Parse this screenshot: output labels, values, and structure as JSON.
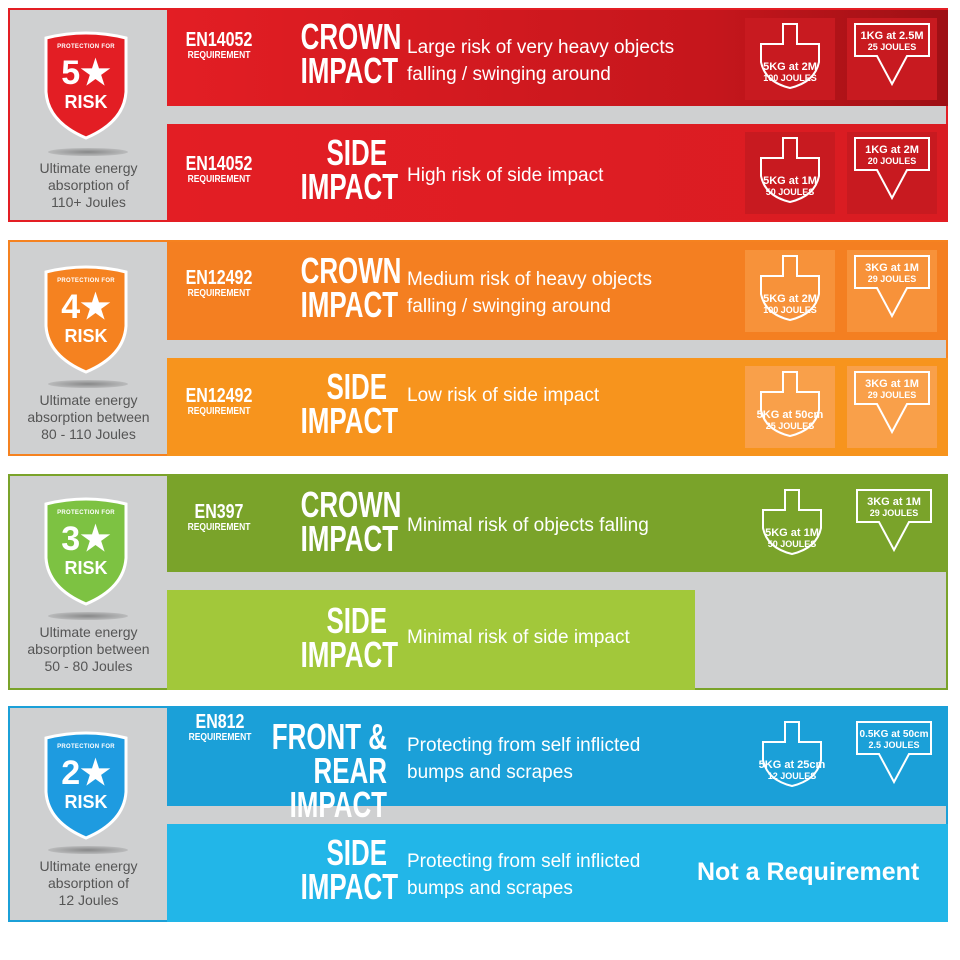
{
  "groups": [
    {
      "color": "#e31e24",
      "shield": {
        "protection_for": "PROTECTION FOR",
        "stars": "5★",
        "risk": "RISK"
      },
      "absorption": [
        "Ultimate energy",
        "absorption of",
        "110+ Joules"
      ],
      "rows": [
        {
          "std_code": "EN14052",
          "std_req": "REQUIREMENT",
          "impact_1": "CROWN",
          "impact_2": "IMPACT",
          "desc_1": "Large risk of very heavy objects",
          "desc_2": "falling / swinging around",
          "icon_a": [
            "5KG at 2M",
            "100 JOULES"
          ],
          "icon_b": [
            "1KG at 2.5M",
            "25 JOULES"
          ]
        },
        {
          "std_code": "EN14052",
          "std_req": "REQUIREMENT",
          "impact_1": "SIDE",
          "impact_2": "IMPACT",
          "desc_1": "High risk of side impact",
          "desc_2": "",
          "icon_a": [
            "5KG at 1M",
            "50 JOULES"
          ],
          "icon_b": [
            "1KG at 2M",
            "20 JOULES"
          ]
        }
      ]
    },
    {
      "color": "#f58220",
      "shield": {
        "protection_for": "PROTECTION FOR",
        "stars": "4★",
        "risk": "RISK"
      },
      "absorption": [
        "Ultimate energy",
        "absorption between",
        "80 - 110 Joules"
      ],
      "rows": [
        {
          "std_code": "EN12492",
          "std_req": "REQUIREMENT",
          "impact_1": "CROWN",
          "impact_2": "IMPACT",
          "desc_1": "Medium risk of heavy objects",
          "desc_2": "falling / swinging around",
          "icon_a": [
            "5KG at 2M",
            "100 JOULES"
          ],
          "icon_b": [
            "3KG at 1M",
            "29 JOULES"
          ]
        },
        {
          "std_code": "EN12492",
          "std_req": "REQUIREMENT",
          "impact_1": "SIDE",
          "impact_2": "IMPACT",
          "desc_1": "Low risk of side impact",
          "desc_2": "",
          "icon_a": [
            "5KG at 50cm",
            "25 JOULES"
          ],
          "icon_b": [
            "3KG at 1M",
            "29 JOULES"
          ]
        }
      ]
    },
    {
      "color": "#7aa32a",
      "color_light": "#a2c83a",
      "shield": {
        "protection_for": "PROTECTION FOR",
        "stars": "3★",
        "risk": "RISK"
      },
      "absorption": [
        "Ultimate energy",
        "absorption between",
        "50 - 80 Joules"
      ],
      "rows": [
        {
          "std_code": "EN397",
          "std_req": "REQUIREMENT",
          "impact_1": "CROWN",
          "impact_2": "IMPACT",
          "desc_1": "Minimal risk of objects falling",
          "desc_2": "",
          "icon_a": [
            "5KG at 1M",
            "50 JOULES"
          ],
          "icon_b": [
            "3KG at 1M",
            "29 JOULES"
          ]
        },
        {
          "std_code": "",
          "std_req": "",
          "impact_1": "SIDE",
          "impact_2": "IMPACT",
          "desc_1": "Minimal risk of side impact",
          "desc_2": ""
        }
      ]
    },
    {
      "color": "#1ba0d8",
      "color_light": "#22b6e8",
      "shield": {
        "protection_for": "PROTECTION FOR",
        "stars": "2★",
        "risk": "RISK"
      },
      "absorption": [
        "Ultimate energy",
        "absorption of",
        "12 Joules"
      ],
      "rows": [
        {
          "std_code": "EN812",
          "std_req": "REQUIREMENT",
          "impact_1": "FRONT &",
          "impact_2": "REAR IMPACT",
          "desc_1": "Protecting from self inflicted",
          "desc_2": "bumps and scrapes",
          "icon_a": [
            "5KG at 25cm",
            "12 JOULES"
          ],
          "icon_b": [
            "0.5KG at 50cm",
            "2.5 JOULES"
          ]
        },
        {
          "std_code": "",
          "std_req": "",
          "impact_1": "SIDE",
          "impact_2": "IMPACT",
          "desc_1": "Protecting from self inflicted",
          "desc_2": "bumps and scrapes",
          "not_required": "Not a Requirement"
        }
      ]
    }
  ]
}
